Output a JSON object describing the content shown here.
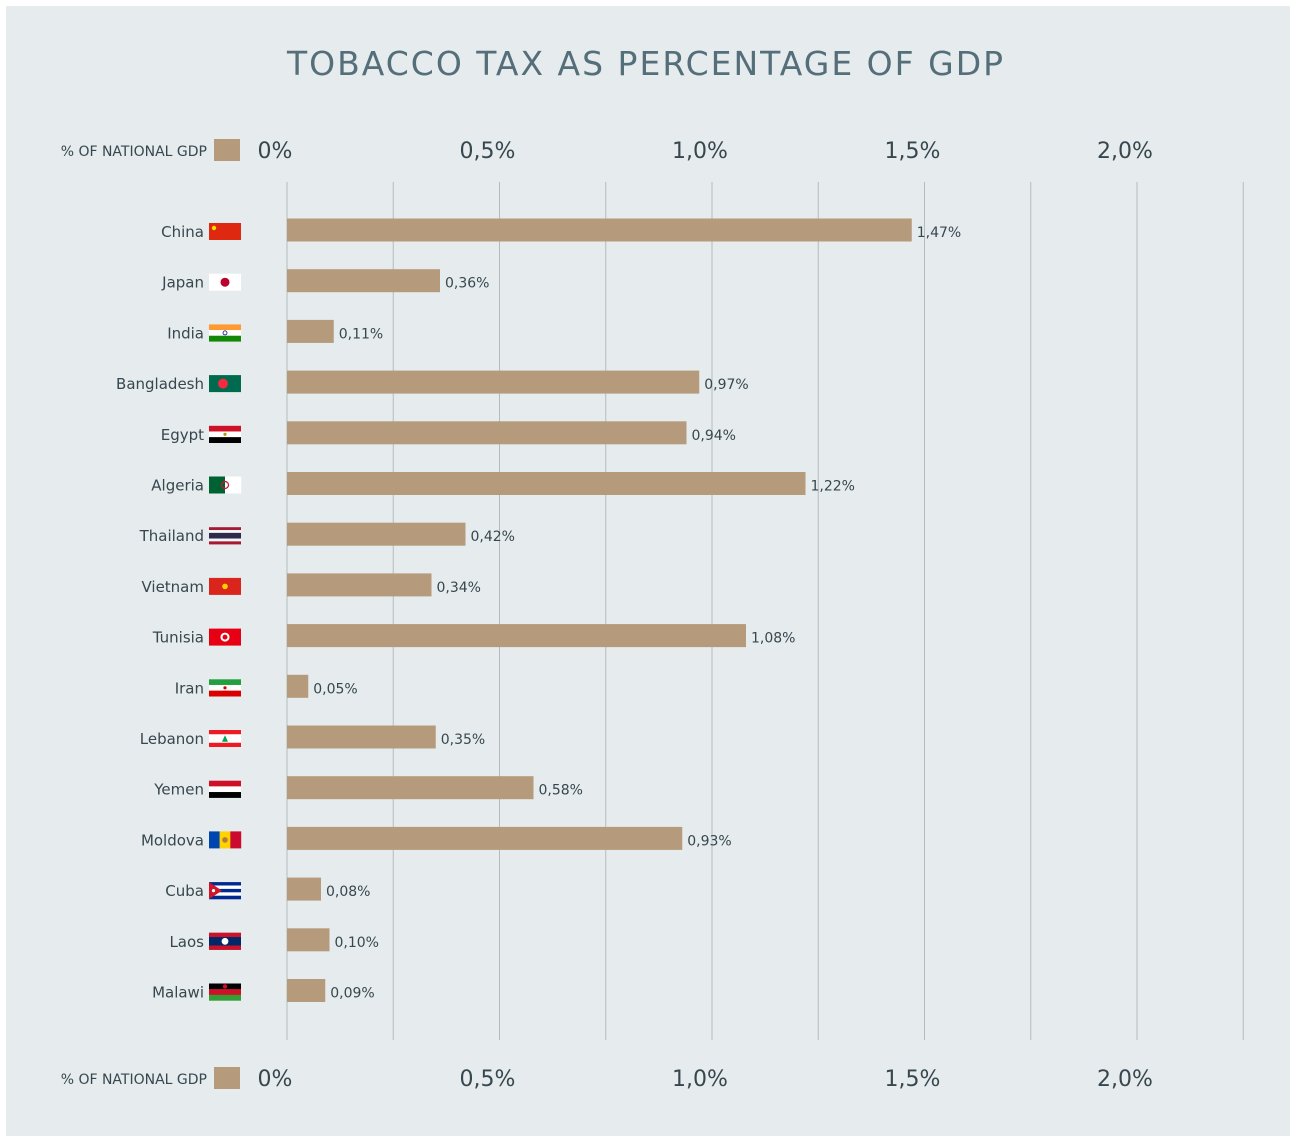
{
  "chart_data": {
    "type": "bar",
    "orientation": "horizontal",
    "title": "TOBACCO TAX AS PERCENTAGE OF GDP",
    "legend_label": "% OF NATIONAL GDP",
    "xlim": [
      0,
      2.25
    ],
    "ticks": [
      0,
      0.5,
      1.0,
      1.5,
      2.0
    ],
    "tick_labels": [
      "0%",
      "0,5%",
      "1,0%",
      "1,5%",
      "2,0%"
    ],
    "categories": [
      "China",
      "Japan",
      "India",
      "Bangladesh",
      "Egypt",
      "Algeria",
      "Thailand",
      "Vietnam",
      "Tunisia",
      "Iran",
      "Lebanon",
      "Yemen",
      "Moldova",
      "Cuba",
      "Laos",
      "Malawi"
    ],
    "values": [
      1.47,
      0.36,
      0.11,
      0.97,
      0.94,
      1.22,
      0.42,
      0.34,
      1.08,
      0.05,
      0.35,
      0.58,
      0.93,
      0.08,
      0.1,
      0.09
    ],
    "value_labels": [
      "1,47%",
      "0,36%",
      "0,11%",
      "0,97%",
      "0,94%",
      "1,22%",
      "0,42%",
      "0,34%",
      "1,08%",
      "0,05%",
      "0,35%",
      "0,58%",
      "0,93%",
      "0,08%",
      "0,10%",
      "0,09%"
    ],
    "flag_icons": [
      "china-flag-icon",
      "japan-flag-icon",
      "india-flag-icon",
      "bangladesh-flag-icon",
      "egypt-flag-icon",
      "algeria-flag-icon",
      "thailand-flag-icon",
      "vietnam-flag-icon",
      "tunisia-flag-icon",
      "iran-flag-icon",
      "lebanon-flag-icon",
      "yemen-flag-icon",
      "moldova-flag-icon",
      "cuba-flag-icon",
      "laos-flag-icon",
      "malawi-flag-icon"
    ],
    "grid": true,
    "legend_position": "top-left and bottom-left",
    "colors": {
      "bar": "#b59b7b",
      "background": "#e6ebed",
      "title": "#546e7a",
      "text": "#37474f",
      "grid": "#b4bcc0"
    }
  }
}
